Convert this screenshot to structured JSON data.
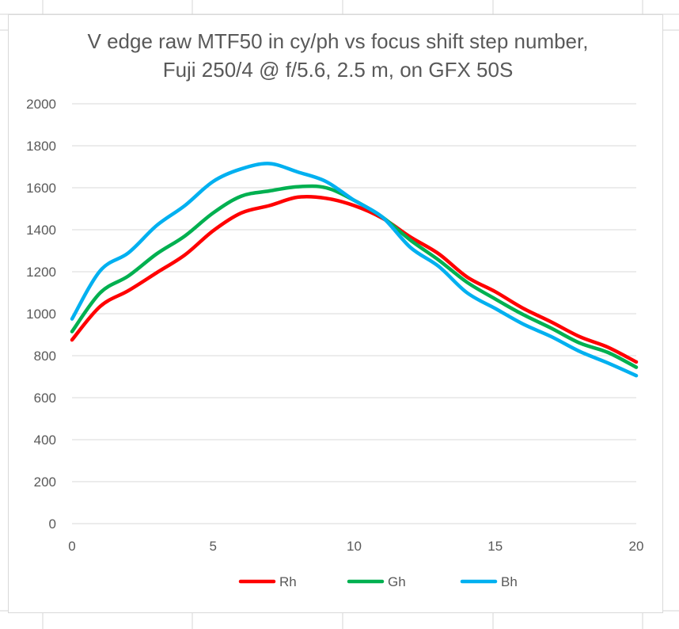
{
  "chart_data": {
    "type": "line",
    "title_lines": [
      "V edge raw MTF50 in cy/ph vs focus shift step number,",
      "Fuji 250/4 @ f/5.6, 2.5 m, on GFX 50S"
    ],
    "xlabel": "",
    "ylabel": "",
    "xlim": [
      0,
      20
    ],
    "ylim": [
      0,
      2000
    ],
    "x_ticks": [
      "0",
      "5",
      "10",
      "15",
      "20"
    ],
    "y_ticks": [
      "0",
      "200",
      "400",
      "600",
      "800",
      "1000",
      "1200",
      "1400",
      "1600",
      "1800",
      "2000"
    ],
    "grid": true,
    "legend_position": "bottom",
    "x": [
      0,
      1,
      2,
      3,
      4,
      5,
      6,
      7,
      8,
      9,
      10,
      11,
      12,
      13,
      14,
      15,
      16,
      17,
      18,
      19,
      20
    ],
    "series": [
      {
        "name": "Rh",
        "color": "#ff0000",
        "values": [
          875,
          1035,
          1110,
          1195,
          1280,
          1395,
          1480,
          1515,
          1555,
          1550,
          1515,
          1455,
          1365,
          1285,
          1175,
          1105,
          1025,
          960,
          890,
          840,
          770
        ]
      },
      {
        "name": "Gh",
        "color": "#00b050",
        "values": [
          915,
          1100,
          1180,
          1285,
          1370,
          1480,
          1560,
          1585,
          1605,
          1600,
          1540,
          1460,
          1350,
          1255,
          1150,
          1070,
          995,
          930,
          860,
          815,
          745
        ]
      },
      {
        "name": "Bh",
        "color": "#00b0f0",
        "values": [
          975,
          1205,
          1290,
          1420,
          1515,
          1630,
          1690,
          1715,
          1675,
          1630,
          1540,
          1460,
          1315,
          1225,
          1100,
          1025,
          950,
          890,
          820,
          765,
          705
        ]
      }
    ]
  }
}
